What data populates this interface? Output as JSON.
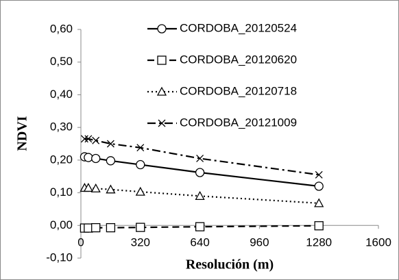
{
  "chart_data": {
    "type": "line",
    "x_label": "Resolución (m)",
    "y_label": "NDVI",
    "x": [
      20,
      40,
      80,
      160,
      320,
      640,
      1280
    ],
    "series": [
      {
        "name": "CORDOBA_20120524",
        "color": "#000000",
        "marker": "circle",
        "dash": "solid",
        "values": [
          0.21,
          0.208,
          0.205,
          0.198,
          0.186,
          0.162,
          0.12
        ]
      },
      {
        "name": "CORDOBA_20120620",
        "color": "#000000",
        "marker": "square",
        "dash": "dashed",
        "values": [
          -0.008,
          -0.008,
          -0.007,
          -0.007,
          -0.006,
          -0.004,
          -0.001
        ]
      },
      {
        "name": "CORDOBA_20120718",
        "color": "#000000",
        "marker": "triangle",
        "dash": "dotted",
        "values": [
          0.115,
          0.115,
          0.113,
          0.11,
          0.103,
          0.09,
          0.068
        ]
      },
      {
        "name": "CORDOBA_20121009",
        "color": "#000000",
        "marker": "x",
        "dash": "dashdot",
        "values": [
          0.265,
          0.265,
          0.26,
          0.25,
          0.238,
          0.205,
          0.155
        ]
      }
    ],
    "xlim": [
      0,
      1600
    ],
    "xticks": [
      0,
      320,
      640,
      960,
      1280,
      1600
    ],
    "ylim": [
      -0.1,
      0.6
    ],
    "yticks": [
      {
        "value": -0.1,
        "label": "-0,10"
      },
      {
        "value": 0,
        "label": "0,00"
      },
      {
        "value": 0.1,
        "label": "0,10"
      },
      {
        "value": 0.2,
        "label": "0,20"
      },
      {
        "value": 0.3,
        "label": "0,30"
      },
      {
        "value": 0.4,
        "label": "0,40"
      },
      {
        "value": 0.5,
        "label": "0,50"
      },
      {
        "value": 0.6,
        "label": "0,60"
      }
    ],
    "grid": false
  }
}
